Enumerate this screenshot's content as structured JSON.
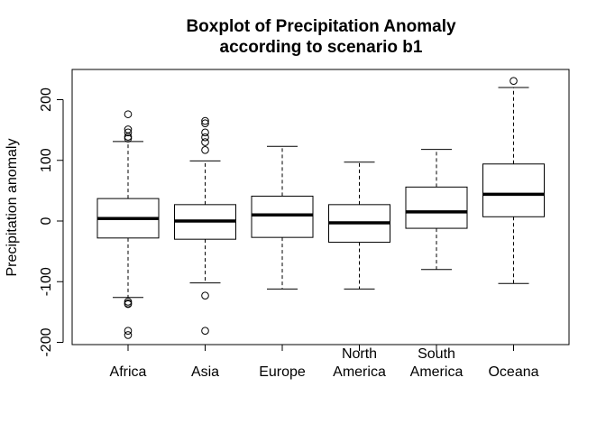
{
  "chart_data": {
    "type": "boxplot",
    "title": [
      "Boxplot of Precipitation Anomaly",
      "according to scenario b1"
    ],
    "ylabel": "Precipitation anomaly",
    "xlabel": "",
    "ylim": [
      -200,
      250
    ],
    "yticks": [
      -200,
      -100,
      0,
      100,
      200
    ],
    "ytick_labels": [
      "-200",
      "-100",
      "0",
      "100",
      "200"
    ],
    "categories": [
      {
        "lines": [
          "Africa"
        ]
      },
      {
        "lines": [
          "Asia"
        ]
      },
      {
        "lines": [
          "Europe"
        ]
      },
      {
        "lines": [
          "North",
          "America"
        ]
      },
      {
        "lines": [
          "South",
          "America"
        ]
      },
      {
        "lines": [
          "Oceana"
        ]
      }
    ],
    "boxes": [
      {
        "whisker_low": -126,
        "q1": -28,
        "median": 4,
        "q3": 37,
        "whisker_high": 131,
        "outliers": [
          176,
          151,
          146,
          139,
          136,
          -133,
          -136,
          -137,
          -181,
          -188
        ]
      },
      {
        "whisker_low": -102,
        "q1": -30,
        "median": 0,
        "q3": 27,
        "whisker_high": 99,
        "outliers": [
          165,
          161,
          146,
          138,
          130,
          117,
          -123,
          -181
        ]
      },
      {
        "whisker_low": -112,
        "q1": -27,
        "median": 10,
        "q3": 41,
        "whisker_high": 123,
        "outliers": []
      },
      {
        "whisker_low": -112,
        "q1": -35,
        "median": -3,
        "q3": 27,
        "whisker_high": 97,
        "outliers": []
      },
      {
        "whisker_low": -80,
        "q1": -12,
        "median": 15,
        "q3": 56,
        "whisker_high": 118,
        "outliers": []
      },
      {
        "whisker_low": -103,
        "q1": 7,
        "median": 44,
        "q3": 94,
        "whisker_high": 220,
        "outliers": [
          231
        ]
      }
    ],
    "grid": false,
    "legend": "none"
  }
}
